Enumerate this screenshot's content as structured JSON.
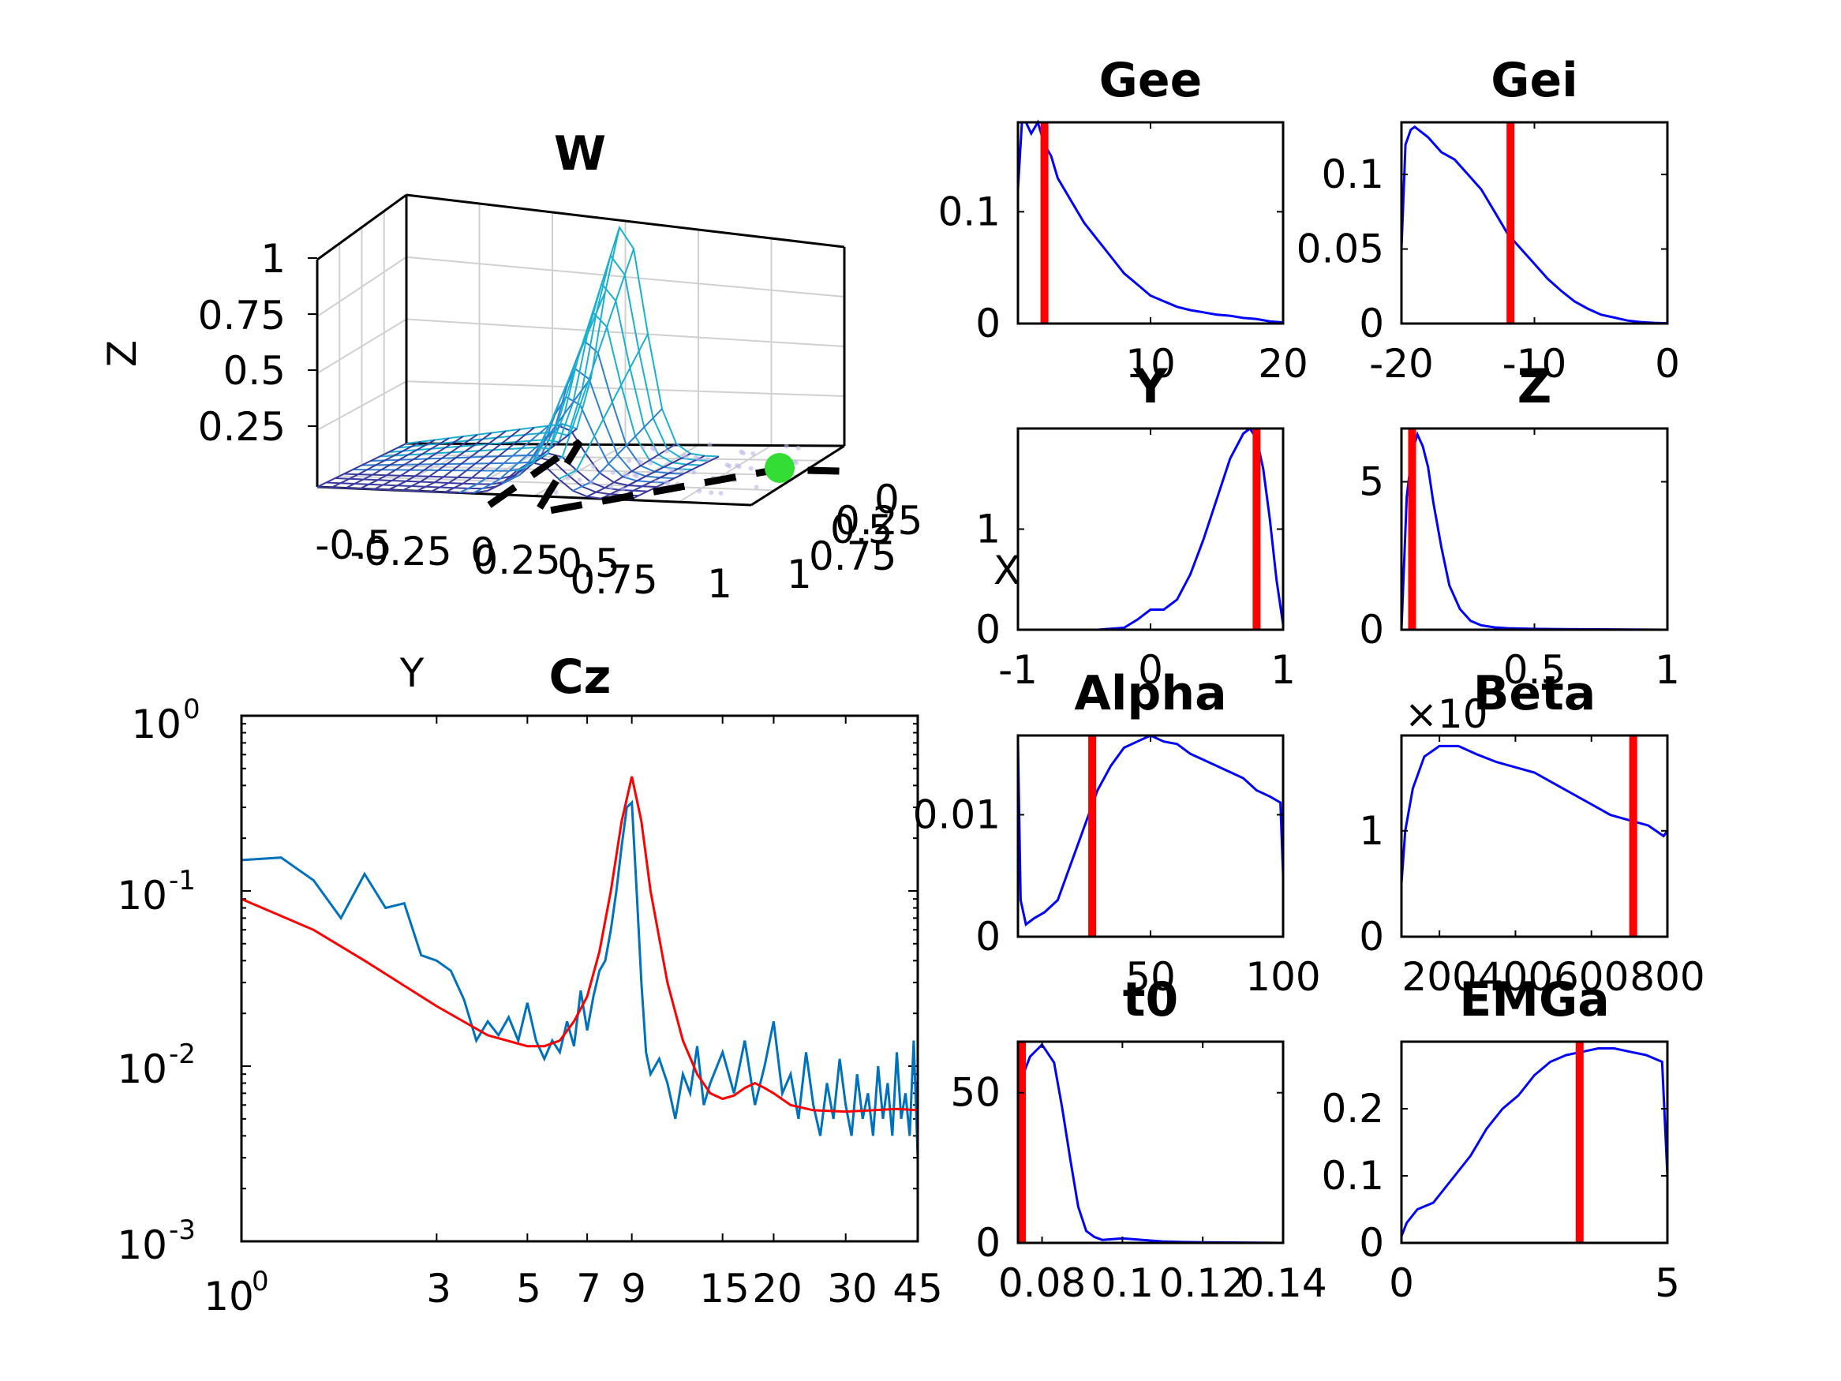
{
  "figure": {
    "background": "#ffffff",
    "line_color": "#0000ff",
    "marker_color": "#ff0000",
    "spectrum_data_color": "#0072bd",
    "spectrum_fit_color": "#ff0000"
  },
  "chart_data": [
    {
      "id": "W",
      "type": "surface3d",
      "title": "W",
      "xlabel": "X",
      "ylabel": "Y",
      "zlabel": "Z",
      "x_ticks": [
        "0",
        "0.25",
        "0.5",
        "0.75",
        "1"
      ],
      "y_ticks": [
        "-0.5",
        "-0.25",
        "0",
        "0.25",
        "0.5",
        "0.75",
        "1"
      ],
      "z_ticks": [
        "0.25",
        "0.5",
        "0.75",
        "1"
      ],
      "marker_color": "#33dd33",
      "surface_colormap": [
        "#3a3aa0",
        "#2f80d0",
        "#1ab0d0"
      ]
    },
    {
      "id": "Cz",
      "type": "line",
      "title": "Cz",
      "xscale": "log",
      "yscale": "log",
      "xlim": [
        1,
        45
      ],
      "ylim": [
        0.001,
        1
      ],
      "x_ticks": [
        "1",
        "3",
        "5",
        "7",
        "9",
        "15",
        "20",
        "30",
        "45"
      ],
      "y_ticks": [
        "-3",
        "-2",
        "-1",
        "0"
      ],
      "series": [
        {
          "values_x": [
            1,
            1.25,
            1.5,
            1.75,
            2,
            2.25,
            2.5,
            2.75,
            3,
            3.25,
            3.5,
            3.75,
            4,
            4.25,
            4.5,
            4.75,
            5,
            5.25,
            5.5,
            5.75,
            6,
            6.25,
            6.5,
            6.75,
            7,
            7.25,
            7.5,
            7.75,
            8,
            8.25,
            8.5,
            8.75,
            9,
            9.25,
            9.5,
            9.75,
            10,
            10.5,
            11,
            11.5,
            12,
            12.5,
            13,
            13.5,
            14,
            15,
            16,
            17,
            18,
            19,
            20,
            21,
            22,
            23,
            24,
            25,
            26,
            27,
            28,
            29,
            30,
            31,
            32,
            33,
            34,
            35,
            36,
            37,
            38,
            39,
            40,
            41,
            42,
            43,
            44,
            45
          ],
          "values_y": [
            0.15,
            0.155,
            0.115,
            0.07,
            0.125,
            0.08,
            0.085,
            0.043,
            0.04,
            0.035,
            0.024,
            0.014,
            0.018,
            0.015,
            0.019,
            0.014,
            0.023,
            0.014,
            0.011,
            0.014,
            0.012,
            0.018,
            0.013,
            0.027,
            0.016,
            0.025,
            0.035,
            0.04,
            0.06,
            0.1,
            0.18,
            0.3,
            0.32,
            0.1,
            0.03,
            0.012,
            0.009,
            0.011,
            0.008,
            0.005,
            0.009,
            0.007,
            0.013,
            0.006,
            0.008,
            0.012,
            0.007,
            0.014,
            0.006,
            0.01,
            0.018,
            0.007,
            0.009,
            0.005,
            0.012,
            0.006,
            0.004,
            0.008,
            0.005,
            0.011,
            0.006,
            0.004,
            0.009,
            0.005,
            0.007,
            0.004,
            0.01,
            0.005,
            0.008,
            0.004,
            0.012,
            0.005,
            0.007,
            0.004,
            0.014,
            0.003
          ]
        },
        {
          "values_x": [
            1,
            1.5,
            2,
            3,
            4,
            5,
            5.5,
            6,
            6.5,
            7,
            7.5,
            8,
            8.5,
            9,
            9.5,
            10,
            11,
            12,
            13,
            14,
            15,
            16,
            17,
            18,
            19,
            20,
            22,
            25,
            30,
            35,
            40,
            45
          ],
          "values_y": [
            0.09,
            0.06,
            0.04,
            0.022,
            0.015,
            0.013,
            0.013,
            0.014,
            0.018,
            0.025,
            0.045,
            0.1,
            0.25,
            0.45,
            0.25,
            0.1,
            0.03,
            0.014,
            0.009,
            0.007,
            0.0065,
            0.0068,
            0.0075,
            0.008,
            0.0075,
            0.007,
            0.006,
            0.0056,
            0.0055,
            0.0056,
            0.0057,
            0.0056
          ]
        }
      ]
    },
    {
      "id": "Gee",
      "type": "line",
      "title": "Gee",
      "xlim": [
        0,
        20
      ],
      "ylim": [
        0,
        0.18
      ],
      "x_ticks": [
        "10",
        "20"
      ],
      "y_ticks": [
        "0",
        "0.1"
      ],
      "marker_x": 2,
      "x": [
        0,
        0.3,
        0.6,
        1,
        1.5,
        2,
        2.5,
        3,
        4,
        5,
        6,
        7,
        8,
        9,
        10,
        11,
        12,
        13,
        14,
        15,
        16,
        17,
        18,
        19,
        20
      ],
      "y": [
        0.12,
        0.18,
        0.18,
        0.17,
        0.18,
        0.16,
        0.15,
        0.13,
        0.11,
        0.09,
        0.075,
        0.06,
        0.045,
        0.035,
        0.025,
        0.02,
        0.015,
        0.012,
        0.01,
        0.008,
        0.007,
        0.005,
        0.004,
        0.002,
        0.001
      ]
    },
    {
      "id": "Gei",
      "type": "line",
      "title": "Gei",
      "xlim": [
        -20,
        0
      ],
      "ylim": [
        0,
        0.135
      ],
      "x_ticks": [
        "-20",
        "-10",
        "0"
      ],
      "y_ticks": [
        "0",
        "0.05",
        "0.1"
      ],
      "marker_x": -11.8,
      "x": [
        -20,
        -19.7,
        -19.3,
        -19,
        -18,
        -17,
        -16,
        -15,
        -14,
        -13,
        -12,
        -11,
        -10,
        -9,
        -8,
        -7,
        -6,
        -5,
        -4,
        -3,
        -2,
        -1,
        0
      ],
      "y": [
        0.05,
        0.12,
        0.13,
        0.132,
        0.125,
        0.115,
        0.11,
        0.1,
        0.09,
        0.075,
        0.06,
        0.05,
        0.04,
        0.03,
        0.022,
        0.015,
        0.01,
        0.006,
        0.004,
        0.002,
        0.001,
        0.0005,
        0.0002
      ]
    },
    {
      "id": "Y",
      "type": "line",
      "title": "Y",
      "xlim": [
        -1,
        1
      ],
      "ylim": [
        0,
        2
      ],
      "x_ticks": [
        "-1",
        "0",
        "1"
      ],
      "y_ticks": [
        "0",
        "1"
      ],
      "marker_x": 0.8,
      "x": [
        -1,
        -0.4,
        -0.2,
        -0.1,
        0,
        0.1,
        0.2,
        0.3,
        0.4,
        0.5,
        0.6,
        0.7,
        0.75,
        0.8,
        0.85,
        0.9,
        0.95,
        1
      ],
      "y": [
        0,
        0,
        0.02,
        0.1,
        0.2,
        0.2,
        0.3,
        0.55,
        0.9,
        1.3,
        1.7,
        1.95,
        2.0,
        1.9,
        1.6,
        1.1,
        0.5,
        0.05
      ]
    },
    {
      "id": "Z",
      "type": "line",
      "title": "Z",
      "xlim": [
        0,
        1
      ],
      "ylim": [
        0,
        6.8
      ],
      "x_ticks": [
        "0.5",
        "1"
      ],
      "y_ticks": [
        "0",
        "5"
      ],
      "marker_x": 0.04,
      "x": [
        0,
        0.02,
        0.04,
        0.06,
        0.08,
        0.1,
        0.12,
        0.15,
        0.18,
        0.22,
        0.26,
        0.3,
        0.35,
        0.4,
        0.5,
        0.6,
        0.8,
        1
      ],
      "y": [
        0,
        4.5,
        6,
        6.6,
        6.2,
        5.5,
        4.3,
        2.8,
        1.5,
        0.7,
        0.3,
        0.15,
        0.08,
        0.05,
        0.03,
        0.02,
        0.01,
        0
      ]
    },
    {
      "id": "Alpha",
      "type": "line",
      "title": "Alpha",
      "xlim": [
        0,
        100
      ],
      "ylim": [
        0,
        0.0165
      ],
      "x_ticks": [
        "50",
        "100"
      ],
      "y_ticks": [
        "0",
        "0.01"
      ],
      "marker_x": 28,
      "x": [
        0,
        1,
        3,
        6,
        10,
        15,
        20,
        25,
        30,
        35,
        40,
        45,
        50,
        55,
        60,
        65,
        70,
        75,
        80,
        85,
        90,
        95,
        99,
        100
      ],
      "y": [
        0.016,
        0.003,
        0.001,
        0.0015,
        0.002,
        0.003,
        0.006,
        0.009,
        0.012,
        0.014,
        0.0155,
        0.016,
        0.0165,
        0.016,
        0.0158,
        0.015,
        0.0145,
        0.014,
        0.0135,
        0.013,
        0.012,
        0.0115,
        0.011,
        0.005
      ]
    },
    {
      "id": "Beta",
      "type": "line",
      "title": "Beta",
      "xlim": [
        100,
        800
      ],
      "ylim": [
        0,
        1.9
      ],
      "x_ticks": [
        "200",
        "400",
        "600",
        "800"
      ],
      "y_ticks": [
        "0",
        "1"
      ],
      "multiplier_label": "×10",
      "marker_x": 710,
      "x": [
        100,
        110,
        130,
        160,
        200,
        250,
        300,
        350,
        400,
        450,
        500,
        550,
        600,
        650,
        700,
        750,
        790,
        800
      ],
      "y": [
        0.5,
        1.0,
        1.4,
        1.7,
        1.8,
        1.8,
        1.72,
        1.65,
        1.6,
        1.55,
        1.45,
        1.35,
        1.25,
        1.15,
        1.1,
        1.05,
        0.95,
        1.0
      ]
    },
    {
      "id": "t0",
      "type": "line",
      "title": "t0",
      "xlim": [
        0.074,
        0.14
      ],
      "ylim": [
        0,
        67
      ],
      "x_ticks": [
        "0.08",
        "0.1",
        "0.12",
        "0.14"
      ],
      "y_ticks": [
        "0",
        "50"
      ],
      "marker_x": 0.075,
      "x": [
        0.074,
        0.075,
        0.077,
        0.08,
        0.083,
        0.085,
        0.087,
        0.089,
        0.091,
        0.093,
        0.095,
        0.1,
        0.105,
        0.11,
        0.115,
        0.12,
        0.14
      ],
      "y": [
        40,
        55,
        62,
        66,
        60,
        45,
        28,
        12,
        4,
        2,
        1,
        1.5,
        1,
        0.5,
        0.3,
        0.2,
        0
      ]
    },
    {
      "id": "EMGa",
      "type": "line",
      "title": "EMGa",
      "xlim": [
        0,
        5
      ],
      "ylim": [
        0,
        0.3
      ],
      "x_ticks": [
        "0",
        "5"
      ],
      "y_ticks": [
        "0",
        "0.1",
        "0.2"
      ],
      "marker_x": 3.35,
      "x": [
        0,
        0.1,
        0.3,
        0.6,
        1,
        1.3,
        1.6,
        1.9,
        2.2,
        2.5,
        2.8,
        3.1,
        3.4,
        3.7,
        4,
        4.3,
        4.6,
        4.9,
        5
      ],
      "y": [
        0.01,
        0.03,
        0.05,
        0.06,
        0.1,
        0.13,
        0.17,
        0.2,
        0.22,
        0.25,
        0.27,
        0.28,
        0.285,
        0.29,
        0.29,
        0.285,
        0.28,
        0.27,
        0.1
      ]
    }
  ]
}
